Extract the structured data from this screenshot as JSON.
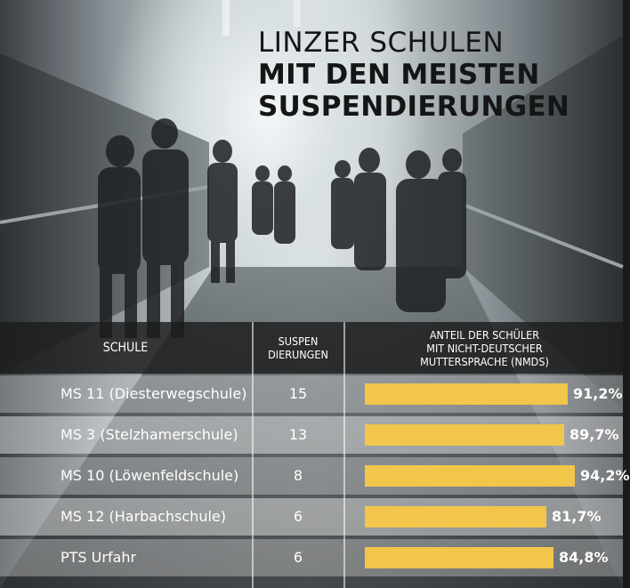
{
  "title": {
    "line1": "LINZER SCHULEN",
    "line2": "MIT DEN MEISTEN",
    "line3": "SUSPENDIERUNGEN"
  },
  "table": {
    "headers": {
      "school": "SCHULE",
      "suspensions": "SUSPEN\nDIERUNGEN",
      "nmds": "ANTEIL DER SCHÜLER\nMIT NICHT-DEUTSCHER\nMUTTERSPRACHE (NMDS)"
    }
  },
  "colors": {
    "bar": "#f2c54b",
    "header_bg": "#1c1c1c",
    "title": "#151515"
  },
  "chart_data": {
    "type": "table",
    "title": "LINZER SCHULEN MIT DEN MEISTEN SUSPENDIERUNGEN",
    "columns": [
      "SCHULE",
      "SUSPEN DIERUNGEN",
      "ANTEIL DER SCHÜLER MIT NICHT-DEUTSCHER MUTTERSPRACHE (NMDS)"
    ],
    "rows": [
      {
        "school": "MS 11 (Diesterwegschule)",
        "suspensions": 15,
        "nmds": 91.2,
        "nmds_label": "91,2%"
      },
      {
        "school": "MS 3 (Stelzhamerschule)",
        "suspensions": 13,
        "nmds": 89.7,
        "nmds_label": "89,7%"
      },
      {
        "school": "MS 10 (Löwenfeldschule)",
        "suspensions": 8,
        "nmds": 94.2,
        "nmds_label": "94,2%"
      },
      {
        "school": "MS 12 (Harbachschule)",
        "suspensions": 6,
        "nmds": 81.7,
        "nmds_label": "81,7%"
      },
      {
        "school": "PTS Urfahr",
        "suspensions": 6,
        "nmds": 84.8,
        "nmds_label": "84,8%"
      }
    ]
  }
}
